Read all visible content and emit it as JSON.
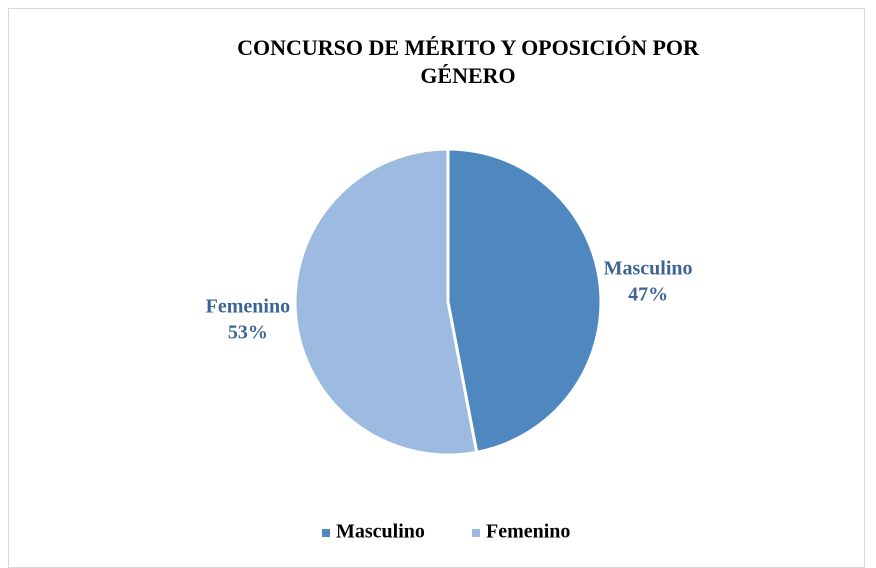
{
  "chart_data": {
    "type": "pie",
    "title": "CONCURSO DE MÉRITO Y OPOSICIÓN POR GÉNERO",
    "categories": [
      "Masculino",
      "Femenino"
    ],
    "values": [
      47,
      53
    ],
    "value_labels": [
      "47%",
      "53%"
    ],
    "colors": [
      "#4f88be",
      "#9dbbe0"
    ],
    "legend": "bottom"
  }
}
